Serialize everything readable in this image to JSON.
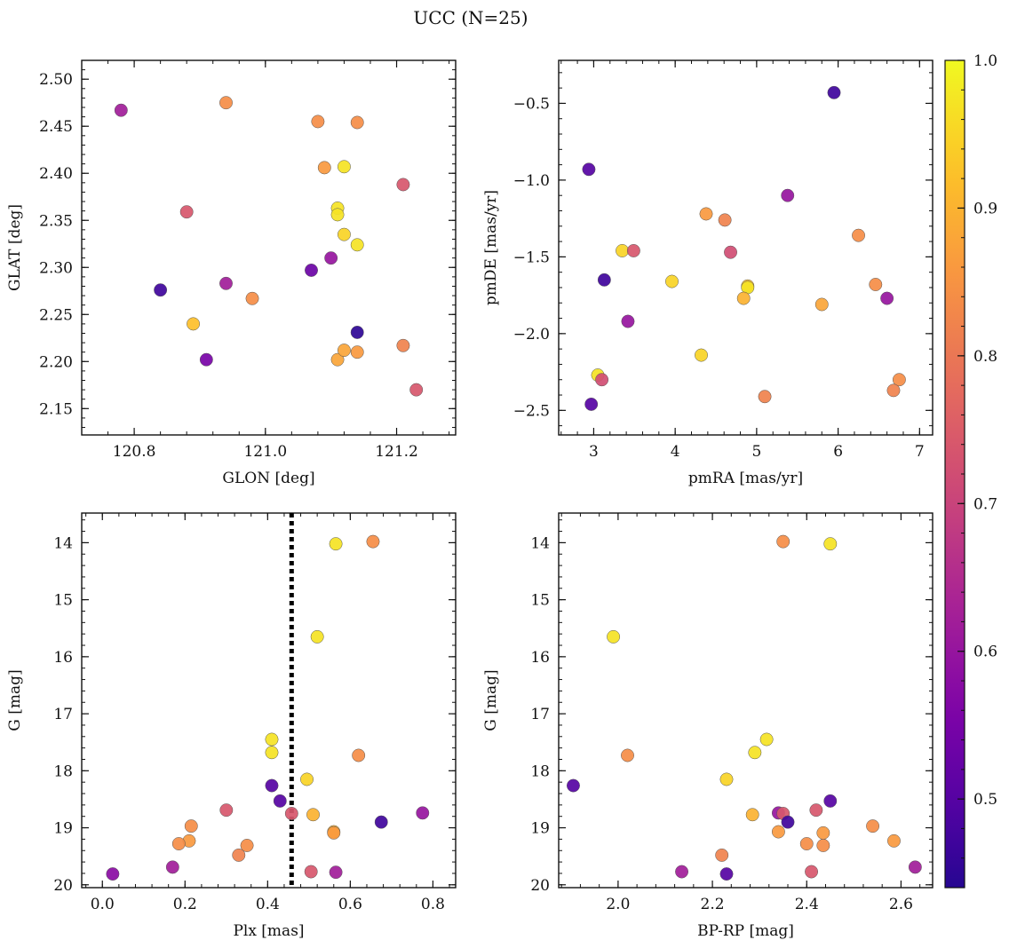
{
  "figure": {
    "title": "UCC (N=25)"
  },
  "colorbar": {
    "range": [
      0.44,
      1.0
    ],
    "ticks": [
      0.5,
      0.6,
      0.7,
      0.8,
      0.9,
      1.0
    ],
    "tick_labels": [
      "0.5",
      "0.6",
      "0.7",
      "0.8",
      "0.9",
      "1.0"
    ],
    "colormap": "plasma"
  },
  "chart_data": [
    {
      "type": "scatter",
      "title": "",
      "xlabel": "GLON [deg]",
      "ylabel": "GLAT [deg]",
      "xlim": [
        120.72,
        121.29
      ],
      "ylim": [
        2.122,
        2.52
      ],
      "yinvert": false,
      "xticks": [
        120.8,
        121.0,
        121.2
      ],
      "xtick_labels": [
        "120.8",
        "121.0",
        "121.2"
      ],
      "yticks": [
        2.15,
        2.2,
        2.25,
        2.3,
        2.35,
        2.4,
        2.45,
        2.5
      ],
      "ytick_labels": [
        "2.15",
        "2.20",
        "2.25",
        "2.30",
        "2.35",
        "2.40",
        "2.45",
        "2.50"
      ],
      "points": [
        {
          "x": 120.78,
          "y": 2.467,
          "c": 0.62
        },
        {
          "x": 120.94,
          "y": 2.475,
          "c": 0.84
        },
        {
          "x": 121.08,
          "y": 2.455,
          "c": 0.84
        },
        {
          "x": 121.14,
          "y": 2.454,
          "c": 0.84
        },
        {
          "x": 121.09,
          "y": 2.406,
          "c": 0.86
        },
        {
          "x": 121.12,
          "y": 2.407,
          "c": 0.97
        },
        {
          "x": 121.21,
          "y": 2.388,
          "c": 0.74
        },
        {
          "x": 120.88,
          "y": 2.359,
          "c": 0.74
        },
        {
          "x": 121.11,
          "y": 2.363,
          "c": 0.97
        },
        {
          "x": 121.11,
          "y": 2.356,
          "c": 0.97
        },
        {
          "x": 121.12,
          "y": 2.335,
          "c": 0.95
        },
        {
          "x": 121.14,
          "y": 2.324,
          "c": 0.97
        },
        {
          "x": 121.1,
          "y": 2.31,
          "c": 0.6
        },
        {
          "x": 121.07,
          "y": 2.297,
          "c": 0.53
        },
        {
          "x": 120.84,
          "y": 2.276,
          "c": 0.47
        },
        {
          "x": 120.94,
          "y": 2.283,
          "c": 0.62
        },
        {
          "x": 120.98,
          "y": 2.267,
          "c": 0.84
        },
        {
          "x": 120.89,
          "y": 2.24,
          "c": 0.92
        },
        {
          "x": 121.14,
          "y": 2.231,
          "c": 0.45
        },
        {
          "x": 120.91,
          "y": 2.202,
          "c": 0.55
        },
        {
          "x": 121.11,
          "y": 2.202,
          "c": 0.88
        },
        {
          "x": 121.12,
          "y": 2.212,
          "c": 0.88
        },
        {
          "x": 121.14,
          "y": 2.21,
          "c": 0.86
        },
        {
          "x": 121.21,
          "y": 2.217,
          "c": 0.82
        },
        {
          "x": 121.23,
          "y": 2.17,
          "c": 0.74
        }
      ]
    },
    {
      "type": "scatter",
      "title": "",
      "xlabel": "pmRA [mas/yr]",
      "ylabel": "pmDE [mas/yr]",
      "xlim": [
        2.57,
        7.16
      ],
      "ylim": [
        -2.66,
        -0.22
      ],
      "yinvert": false,
      "xticks": [
        3,
        4,
        5,
        6,
        7
      ],
      "xtick_labels": [
        "3",
        "4",
        "5",
        "6",
        "7"
      ],
      "yticks": [
        -2.5,
        -2.0,
        -1.5,
        -1.0,
        -0.5
      ],
      "ytick_labels": [
        "−2.5",
        "−2.0",
        "−1.5",
        "−1.0",
        "−0.5"
      ],
      "points": [
        {
          "x": 5.95,
          "y": -0.43,
          "c": 0.47
        },
        {
          "x": 2.94,
          "y": -0.93,
          "c": 0.5
        },
        {
          "x": 5.38,
          "y": -1.1,
          "c": 0.6
        },
        {
          "x": 4.38,
          "y": -1.22,
          "c": 0.86
        },
        {
          "x": 4.61,
          "y": -1.26,
          "c": 0.82
        },
        {
          "x": 6.25,
          "y": -1.36,
          "c": 0.84
        },
        {
          "x": 3.35,
          "y": -1.46,
          "c": 0.95
        },
        {
          "x": 3.49,
          "y": -1.46,
          "c": 0.74
        },
        {
          "x": 4.68,
          "y": -1.47,
          "c": 0.72
        },
        {
          "x": 3.13,
          "y": -1.65,
          "c": 0.47
        },
        {
          "x": 3.96,
          "y": -1.66,
          "c": 0.95
        },
        {
          "x": 4.89,
          "y": -1.69,
          "c": 0.92
        },
        {
          "x": 4.89,
          "y": -1.7,
          "c": 0.97
        },
        {
          "x": 6.46,
          "y": -1.68,
          "c": 0.84
        },
        {
          "x": 4.84,
          "y": -1.77,
          "c": 0.9
        },
        {
          "x": 6.6,
          "y": -1.77,
          "c": 0.6
        },
        {
          "x": 5.8,
          "y": -1.81,
          "c": 0.88
        },
        {
          "x": 3.42,
          "y": -1.92,
          "c": 0.6
        },
        {
          "x": 4.32,
          "y": -2.14,
          "c": 0.95
        },
        {
          "x": 3.05,
          "y": -2.27,
          "c": 0.97
        },
        {
          "x": 3.1,
          "y": -2.3,
          "c": 0.72
        },
        {
          "x": 6.75,
          "y": -2.3,
          "c": 0.84
        },
        {
          "x": 6.68,
          "y": -2.37,
          "c": 0.82
        },
        {
          "x": 5.1,
          "y": -2.41,
          "c": 0.82
        },
        {
          "x": 2.97,
          "y": -2.46,
          "c": 0.5
        }
      ]
    },
    {
      "type": "scatter",
      "title": "",
      "xlabel": "Plx [mas]",
      "ylabel": "G [mag]",
      "xlim": [
        -0.05,
        0.855
      ],
      "ylim": [
        20.05,
        13.48
      ],
      "yinvert": true,
      "xticks": [
        0.0,
        0.2,
        0.4,
        0.6,
        0.8
      ],
      "xtick_labels": [
        "0.0",
        "0.2",
        "0.4",
        "0.6",
        "0.8"
      ],
      "yticks": [
        14,
        15,
        16,
        17,
        18,
        19,
        20
      ],
      "ytick_labels": [
        "14",
        "15",
        "16",
        "17",
        "18",
        "19",
        "20"
      ],
      "vline": {
        "x": 0.458,
        "style": "dotted"
      },
      "points": [
        {
          "x": 0.565,
          "y": 14.02,
          "c": 0.97
        },
        {
          "x": 0.655,
          "y": 13.98,
          "c": 0.84
        },
        {
          "x": 0.52,
          "y": 15.65,
          "c": 0.97
        },
        {
          "x": 0.41,
          "y": 17.45,
          "c": 0.97
        },
        {
          "x": 0.41,
          "y": 17.68,
          "c": 0.97
        },
        {
          "x": 0.62,
          "y": 17.73,
          "c": 0.84
        },
        {
          "x": 0.495,
          "y": 18.15,
          "c": 0.95
        },
        {
          "x": 0.41,
          "y": 18.26,
          "c": 0.5
        },
        {
          "x": 0.43,
          "y": 18.53,
          "c": 0.5
        },
        {
          "x": 0.3,
          "y": 18.69,
          "c": 0.74
        },
        {
          "x": 0.458,
          "y": 18.75,
          "c": 0.74
        },
        {
          "x": 0.51,
          "y": 18.77,
          "c": 0.9
        },
        {
          "x": 0.775,
          "y": 18.74,
          "c": 0.6
        },
        {
          "x": 0.675,
          "y": 18.9,
          "c": 0.47
        },
        {
          "x": 0.215,
          "y": 18.97,
          "c": 0.84
        },
        {
          "x": 0.56,
          "y": 19.07,
          "c": 0.9
        },
        {
          "x": 0.56,
          "y": 19.09,
          "c": 0.86
        },
        {
          "x": 0.21,
          "y": 19.23,
          "c": 0.86
        },
        {
          "x": 0.185,
          "y": 19.28,
          "c": 0.84
        },
        {
          "x": 0.35,
          "y": 19.31,
          "c": 0.84
        },
        {
          "x": 0.33,
          "y": 19.48,
          "c": 0.82
        },
        {
          "x": 0.17,
          "y": 19.69,
          "c": 0.62
        },
        {
          "x": 0.505,
          "y": 19.77,
          "c": 0.74
        },
        {
          "x": 0.565,
          "y": 19.78,
          "c": 0.62
        },
        {
          "x": 0.025,
          "y": 19.81,
          "c": 0.58
        }
      ]
    },
    {
      "type": "scatter",
      "title": "",
      "xlabel": "BP-RP [mag]",
      "ylabel": "G [mag]",
      "xlim": [
        1.874,
        2.667
      ],
      "ylim": [
        20.05,
        13.48
      ],
      "yinvert": true,
      "xticks": [
        2.0,
        2.2,
        2.4,
        2.6
      ],
      "xtick_labels": [
        "2.0",
        "2.2",
        "2.4",
        "2.6"
      ],
      "yticks": [
        14,
        15,
        16,
        17,
        18,
        19,
        20
      ],
      "ytick_labels": [
        "14",
        "15",
        "16",
        "17",
        "18",
        "19",
        "20"
      ],
      "points": [
        {
          "x": 2.35,
          "y": 13.98,
          "c": 0.84
        },
        {
          "x": 2.45,
          "y": 14.02,
          "c": 0.97
        },
        {
          "x": 1.99,
          "y": 15.65,
          "c": 0.97
        },
        {
          "x": 2.315,
          "y": 17.45,
          "c": 0.97
        },
        {
          "x": 2.29,
          "y": 17.68,
          "c": 0.97
        },
        {
          "x": 2.02,
          "y": 17.73,
          "c": 0.84
        },
        {
          "x": 2.23,
          "y": 18.15,
          "c": 0.95
        },
        {
          "x": 1.905,
          "y": 18.26,
          "c": 0.5
        },
        {
          "x": 2.45,
          "y": 18.53,
          "c": 0.5
        },
        {
          "x": 2.42,
          "y": 18.69,
          "c": 0.74
        },
        {
          "x": 2.34,
          "y": 18.74,
          "c": 0.6
        },
        {
          "x": 2.35,
          "y": 18.75,
          "c": 0.74
        },
        {
          "x": 2.285,
          "y": 18.77,
          "c": 0.9
        },
        {
          "x": 2.36,
          "y": 18.9,
          "c": 0.47
        },
        {
          "x": 2.54,
          "y": 18.97,
          "c": 0.84
        },
        {
          "x": 2.34,
          "y": 19.07,
          "c": 0.86
        },
        {
          "x": 2.435,
          "y": 19.09,
          "c": 0.86
        },
        {
          "x": 2.585,
          "y": 19.23,
          "c": 0.86
        },
        {
          "x": 2.4,
          "y": 19.28,
          "c": 0.84
        },
        {
          "x": 2.435,
          "y": 19.31,
          "c": 0.84
        },
        {
          "x": 2.22,
          "y": 19.48,
          "c": 0.82
        },
        {
          "x": 2.63,
          "y": 19.69,
          "c": 0.62
        },
        {
          "x": 2.135,
          "y": 19.77,
          "c": 0.62
        },
        {
          "x": 2.41,
          "y": 19.77,
          "c": 0.74
        },
        {
          "x": 2.23,
          "y": 19.81,
          "c": 0.5
        }
      ]
    }
  ]
}
